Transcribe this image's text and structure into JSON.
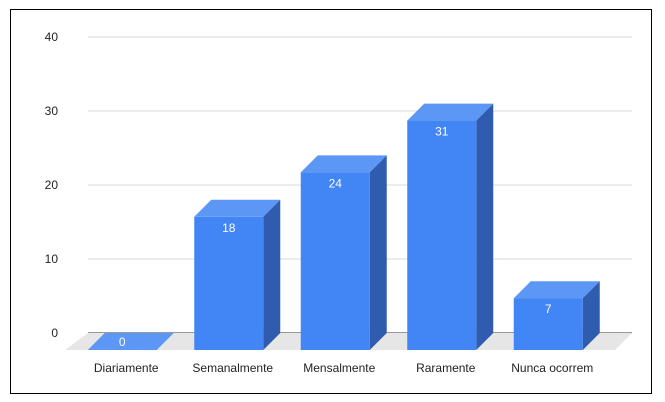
{
  "chart_data": {
    "type": "bar",
    "title": "",
    "xlabel": "",
    "ylabel": "",
    "categories": [
      "Diariamente",
      "Semanalmente",
      "Mensalmente",
      "Raramente",
      "Nunca ocorrem"
    ],
    "values": [
      0,
      18,
      24,
      31,
      7
    ],
    "ylim": [
      0,
      40
    ],
    "yticks": [
      0,
      10,
      20,
      30,
      40
    ],
    "grid": true,
    "style": "3d",
    "colors": {
      "bar_front": "#4285f4",
      "bar_top": "#5c97f6",
      "bar_side": "#2f5cae",
      "floor": "#e6e6e6",
      "grid": "#d9d9d9"
    }
  }
}
